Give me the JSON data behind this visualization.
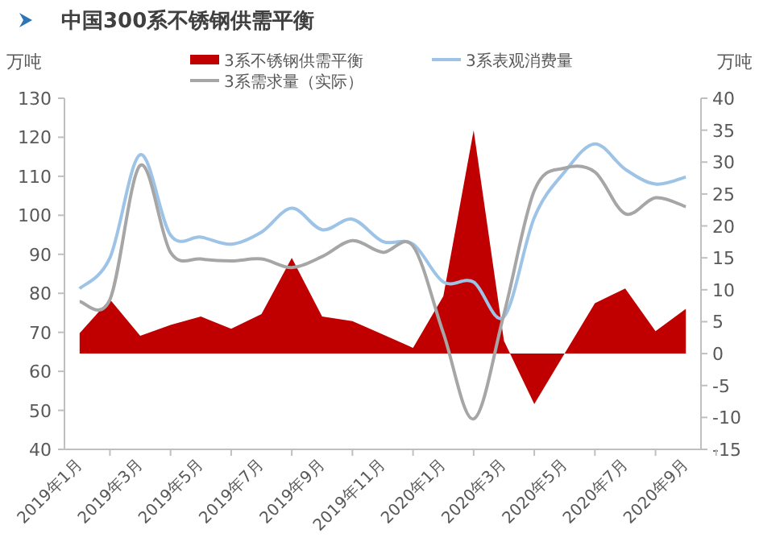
{
  "chart_data": {
    "type": "line",
    "title": "中国300系不锈钢供需平衡",
    "ylabel": "万吨",
    "y2label": "万吨",
    "categories": [
      "2019年1月",
      null,
      "2019年3月",
      null,
      "2019年5月",
      null,
      "2019年7月",
      null,
      "2019年9月",
      null,
      "2019年11月",
      null,
      "2020年1月",
      null,
      "2020年3月",
      null,
      "2020年5月",
      null,
      "2020年7月",
      null,
      "2020年9月"
    ],
    "series": [
      {
        "name": "3系不锈钢供需平衡",
        "type": "area",
        "axis": "y2",
        "color": "#c00000",
        "values": [
          3.2,
          8.5,
          2.8,
          4.5,
          5.8,
          3.9,
          6.2,
          15.0,
          5.8,
          5.1,
          3.0,
          0.9,
          9.0,
          35.0,
          2.0,
          -7.9,
          0,
          7.9,
          10.2,
          3.5,
          7.0
        ]
      },
      {
        "name": "3系表观消费量",
        "type": "line",
        "color": "#9dc3e6",
        "values": [
          81.2,
          89.1,
          115.5,
          94.9,
          94.4,
          92.6,
          95.7,
          101.8,
          96.3,
          99.0,
          93.3,
          92.6,
          82.9,
          82.9,
          74.0,
          99.4,
          111.1,
          118.3,
          111.8,
          108.0,
          109.8
        ]
      },
      {
        "name": "3系需求量（实际）",
        "type": "line",
        "color": "#a6a6a6",
        "values": [
          77.9,
          78.4,
          112.8,
          90.5,
          88.8,
          88.3,
          88.8,
          86.6,
          89.4,
          93.5,
          90.5,
          92.1,
          69.8,
          47.8,
          74.7,
          106.3,
          112.1,
          111.1,
          100.4,
          104.5,
          102.2
        ]
      }
    ],
    "ylim": [
      40,
      130
    ],
    "yticks": [
      40,
      50,
      60,
      70,
      80,
      90,
      100,
      110,
      120,
      130
    ],
    "y2lim": [
      -15,
      40
    ],
    "y2ticks": [
      -15,
      -10,
      -5,
      0,
      5,
      10,
      15,
      20,
      25,
      30,
      35,
      40
    ],
    "legend": "top",
    "grid": false
  }
}
